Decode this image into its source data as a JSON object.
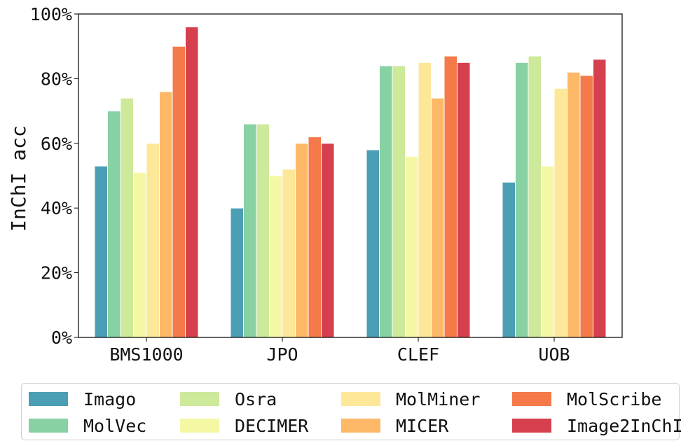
{
  "chart_data": {
    "type": "bar",
    "categories": [
      "BMS1000",
      "JPO",
      "CLEF",
      "UOB"
    ],
    "series": [
      {
        "name": "Imago",
        "color": "#4a9fb5",
        "values": [
          53,
          40,
          58,
          48
        ]
      },
      {
        "name": "MolVec",
        "color": "#88d1a3",
        "values": [
          70,
          66,
          84,
          85
        ]
      },
      {
        "name": "Osra",
        "color": "#cde99a",
        "values": [
          74,
          66,
          84,
          87
        ]
      },
      {
        "name": "DECIMER",
        "color": "#f4f8a5",
        "values": [
          51,
          50,
          56,
          53
        ]
      },
      {
        "name": "MolMiner",
        "color": "#fde798",
        "values": [
          60,
          52,
          85,
          77
        ]
      },
      {
        "name": "MICER",
        "color": "#fdb868",
        "values": [
          76,
          60,
          74,
          82
        ]
      },
      {
        "name": "MolScribe",
        "color": "#f47a4a",
        "values": [
          90,
          62,
          87,
          81
        ]
      },
      {
        "name": "Image2InChI",
        "color": "#d6404e",
        "values": [
          96,
          60,
          85,
          86
        ]
      }
    ],
    "ylabel": "InChI acc",
    "xlabel": "",
    "ylim": [
      0,
      100
    ],
    "yticks": [
      "0%",
      "20%",
      "40%",
      "60%",
      "80%",
      "100%"
    ],
    "legend_position": "bottom",
    "grid": false
  }
}
